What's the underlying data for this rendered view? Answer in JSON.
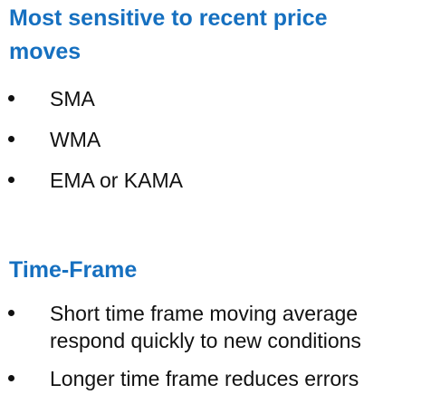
{
  "sections": [
    {
      "heading_line1": "Most sensitive to recent price",
      "heading_line2": "moves",
      "bullets": [
        "SMA",
        "WMA",
        "EMA or KAMA"
      ]
    },
    {
      "heading": "Time-Frame",
      "bullets": [
        {
          "line1": "Short time frame moving average",
          "line2": "respond quickly to new conditions"
        },
        {
          "line1": "Longer time frame reduces errors"
        }
      ]
    }
  ]
}
